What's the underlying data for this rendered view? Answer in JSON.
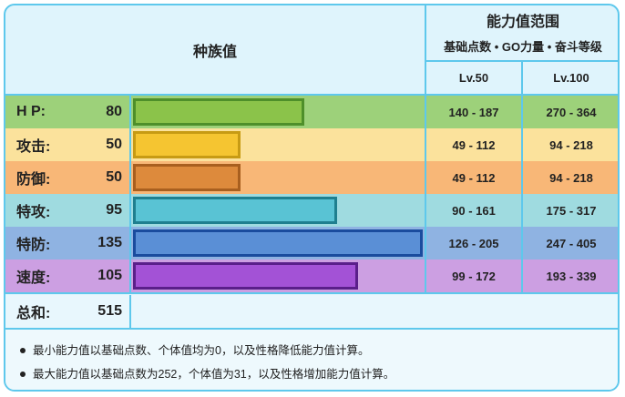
{
  "header": {
    "left_title": "种族值",
    "right_title": "能力值范围",
    "right_subtitle": "基础点数 • GO力量 • 奋斗等级",
    "levels": [
      "Lv.50",
      "Lv.100"
    ]
  },
  "stats": [
    {
      "name": "H P:",
      "value": "80",
      "base": 80,
      "lv50": "140 - 187",
      "lv100": "270 - 364",
      "bar_color": "#8bc34a",
      "bar_border": "#4e8f2a",
      "row_bg": "#9dd17a"
    },
    {
      "name": "攻击:",
      "value": "50",
      "base": 50,
      "lv50": "49 - 112",
      "lv100": "94 - 218",
      "bar_color": "#f5c531",
      "bar_border": "#c79b14",
      "row_bg": "#fbe29c"
    },
    {
      "name": "防御:",
      "value": "50",
      "base": 50,
      "lv50": "49 - 112",
      "lv100": "94 - 218",
      "bar_color": "#dd8a3c",
      "bar_border": "#a85f1f",
      "row_bg": "#f8b777"
    },
    {
      "name": "特攻:",
      "value": "95",
      "base": 95,
      "lv50": "90 - 161",
      "lv100": "175 - 317",
      "bar_color": "#59c3d4",
      "bar_border": "#1f7f8f",
      "row_bg": "#9fdbe0"
    },
    {
      "name": "特防:",
      "value": "135",
      "base": 135,
      "lv50": "126 - 205",
      "lv100": "247 - 405",
      "bar_color": "#5a8fd6",
      "bar_border": "#1a4c9e",
      "row_bg": "#8fb3e2"
    },
    {
      "name": "速度:",
      "value": "105",
      "base": 105,
      "lv50": "99 - 172",
      "lv100": "193 - 339",
      "bar_color": "#a352d6",
      "bar_border": "#5a1f8a",
      "row_bg": "#cc9fe2"
    }
  ],
  "total": {
    "name": "总和:",
    "value": "515"
  },
  "notes": [
    "最小能力值以基础点数、个体值均为0，以及性格降低能力值计算。",
    "最大能力值以基础点数为252，个体值为31，以及性格增加能力值计算。"
  ],
  "colors": {
    "frame": "#5ec8ec",
    "background": "#dff4fc"
  }
}
